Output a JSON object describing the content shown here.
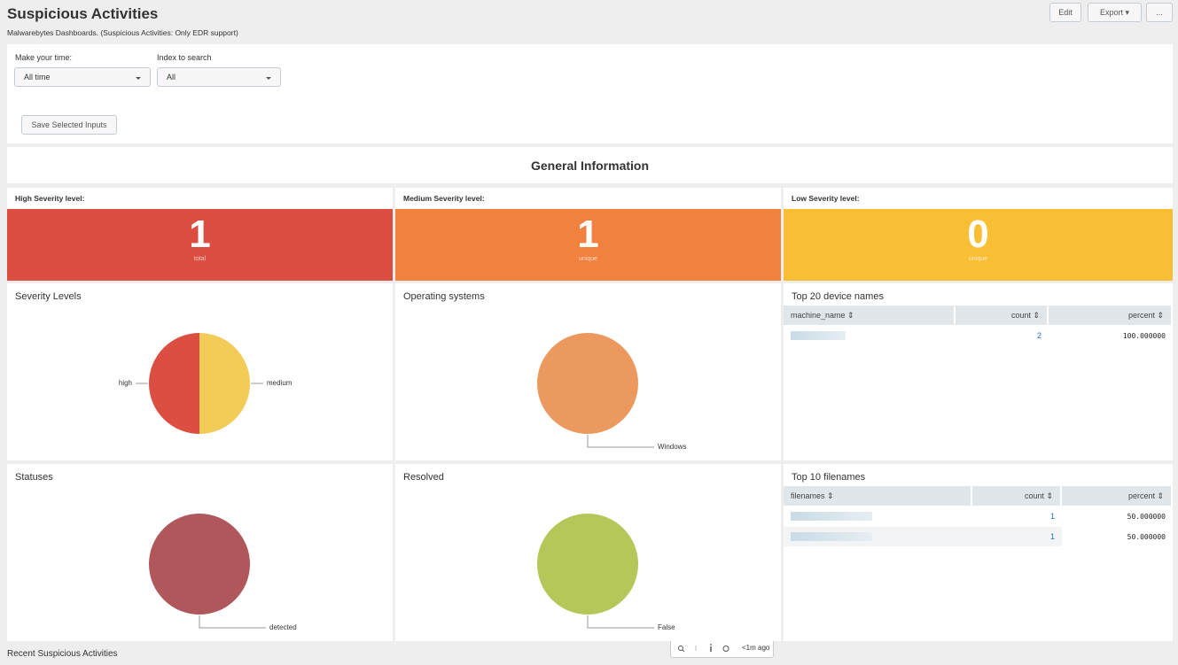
{
  "header": {
    "title": "Suspicious Activities",
    "subtitle": "Malwarebytes Dashboards. (Suspicious Activities: Only EDR support)",
    "buttons": [
      "Edit",
      "Export ▾",
      "..."
    ]
  },
  "inputs": [
    {
      "label": "Make your time:",
      "value": "All time"
    },
    {
      "label": "Index to search",
      "value": "All"
    }
  ],
  "save_button": "Save Selected Inputs",
  "section_title": "General Information",
  "singles": [
    {
      "title": "High Severity level:",
      "value": 1,
      "caption": "total",
      "color": "#dc4e41"
    },
    {
      "title": "Medium Severity level:",
      "value": 1,
      "caption": "unique",
      "color": "#f1813f"
    },
    {
      "title": "Low Severity level:",
      "value": 0,
      "caption": "unique",
      "color": "#f8be34"
    }
  ],
  "pies": [
    {
      "title": "Severity Levels",
      "slices": [
        {
          "label": "high",
          "value": 1,
          "color": "#dc4e41"
        },
        {
          "label": "medium",
          "value": 1,
          "color": "#f2cc57"
        }
      ]
    },
    {
      "title": "Operating systems",
      "slices": [
        {
          "label": "Windows",
          "value": 2,
          "color": "#ec9960"
        }
      ]
    },
    {
      "title": "Statuses",
      "slices": [
        {
          "label": "detected",
          "value": 1,
          "color": "#af575a"
        }
      ]
    },
    {
      "title": "Resolved",
      "slices": [
        {
          "label": "False",
          "value": 1,
          "color": "#b6c75a"
        }
      ]
    }
  ],
  "tables": [
    {
      "title": "Top 20 device names",
      "columns": [
        "machine_name ⇕",
        "count ⇕",
        "percent ⇕"
      ],
      "rows": [
        {
          "count": 2,
          "percent": "100.000000"
        }
      ]
    },
    {
      "title": "Top 10 filenames",
      "columns": [
        "filenames ⇕",
        "count ⇕",
        "percent ⇕"
      ],
      "rows": [
        {
          "count": 1,
          "percent": "50.000000"
        },
        {
          "count": 1,
          "percent": "50.000000"
        }
      ]
    }
  ],
  "footer_title": "Recent Suspicious Activities",
  "refresh_time": "<1m ago"
}
